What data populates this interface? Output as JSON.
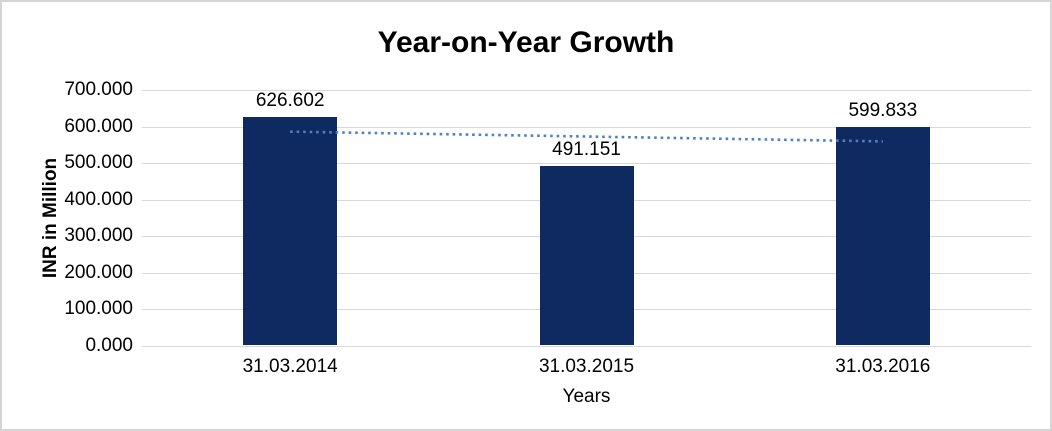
{
  "chart_data": {
    "type": "bar",
    "title": "Year-on-Year Growth",
    "xlabel": "Years",
    "ylabel": "INR in Million",
    "categories": [
      "31.03.2014",
      "31.03.2015",
      "31.03.2016"
    ],
    "values": [
      626.602,
      491.151,
      599.833
    ],
    "data_labels": [
      "626.602",
      "491.151",
      "599.833"
    ],
    "ylim": [
      0,
      700
    ],
    "ytick_values": [
      0,
      100,
      200,
      300,
      400,
      500,
      600,
      700
    ],
    "ytick_labels": [
      "0.000",
      "100.000",
      "200.000",
      "300.000",
      "400.000",
      "500.000",
      "600.000",
      "700.000"
    ],
    "grid": true,
    "legend_position": "none",
    "bar_color": "#0f2a60",
    "trendline": {
      "type": "linear",
      "style": "dotted",
      "color": "#4e81bd",
      "start_value": 585.9,
      "end_value": 559.2
    }
  },
  "colors": {
    "background": "#ffffff",
    "frame_border": "#d5d5d5",
    "gridline": "#d9d9d9",
    "text": "#000000"
  }
}
